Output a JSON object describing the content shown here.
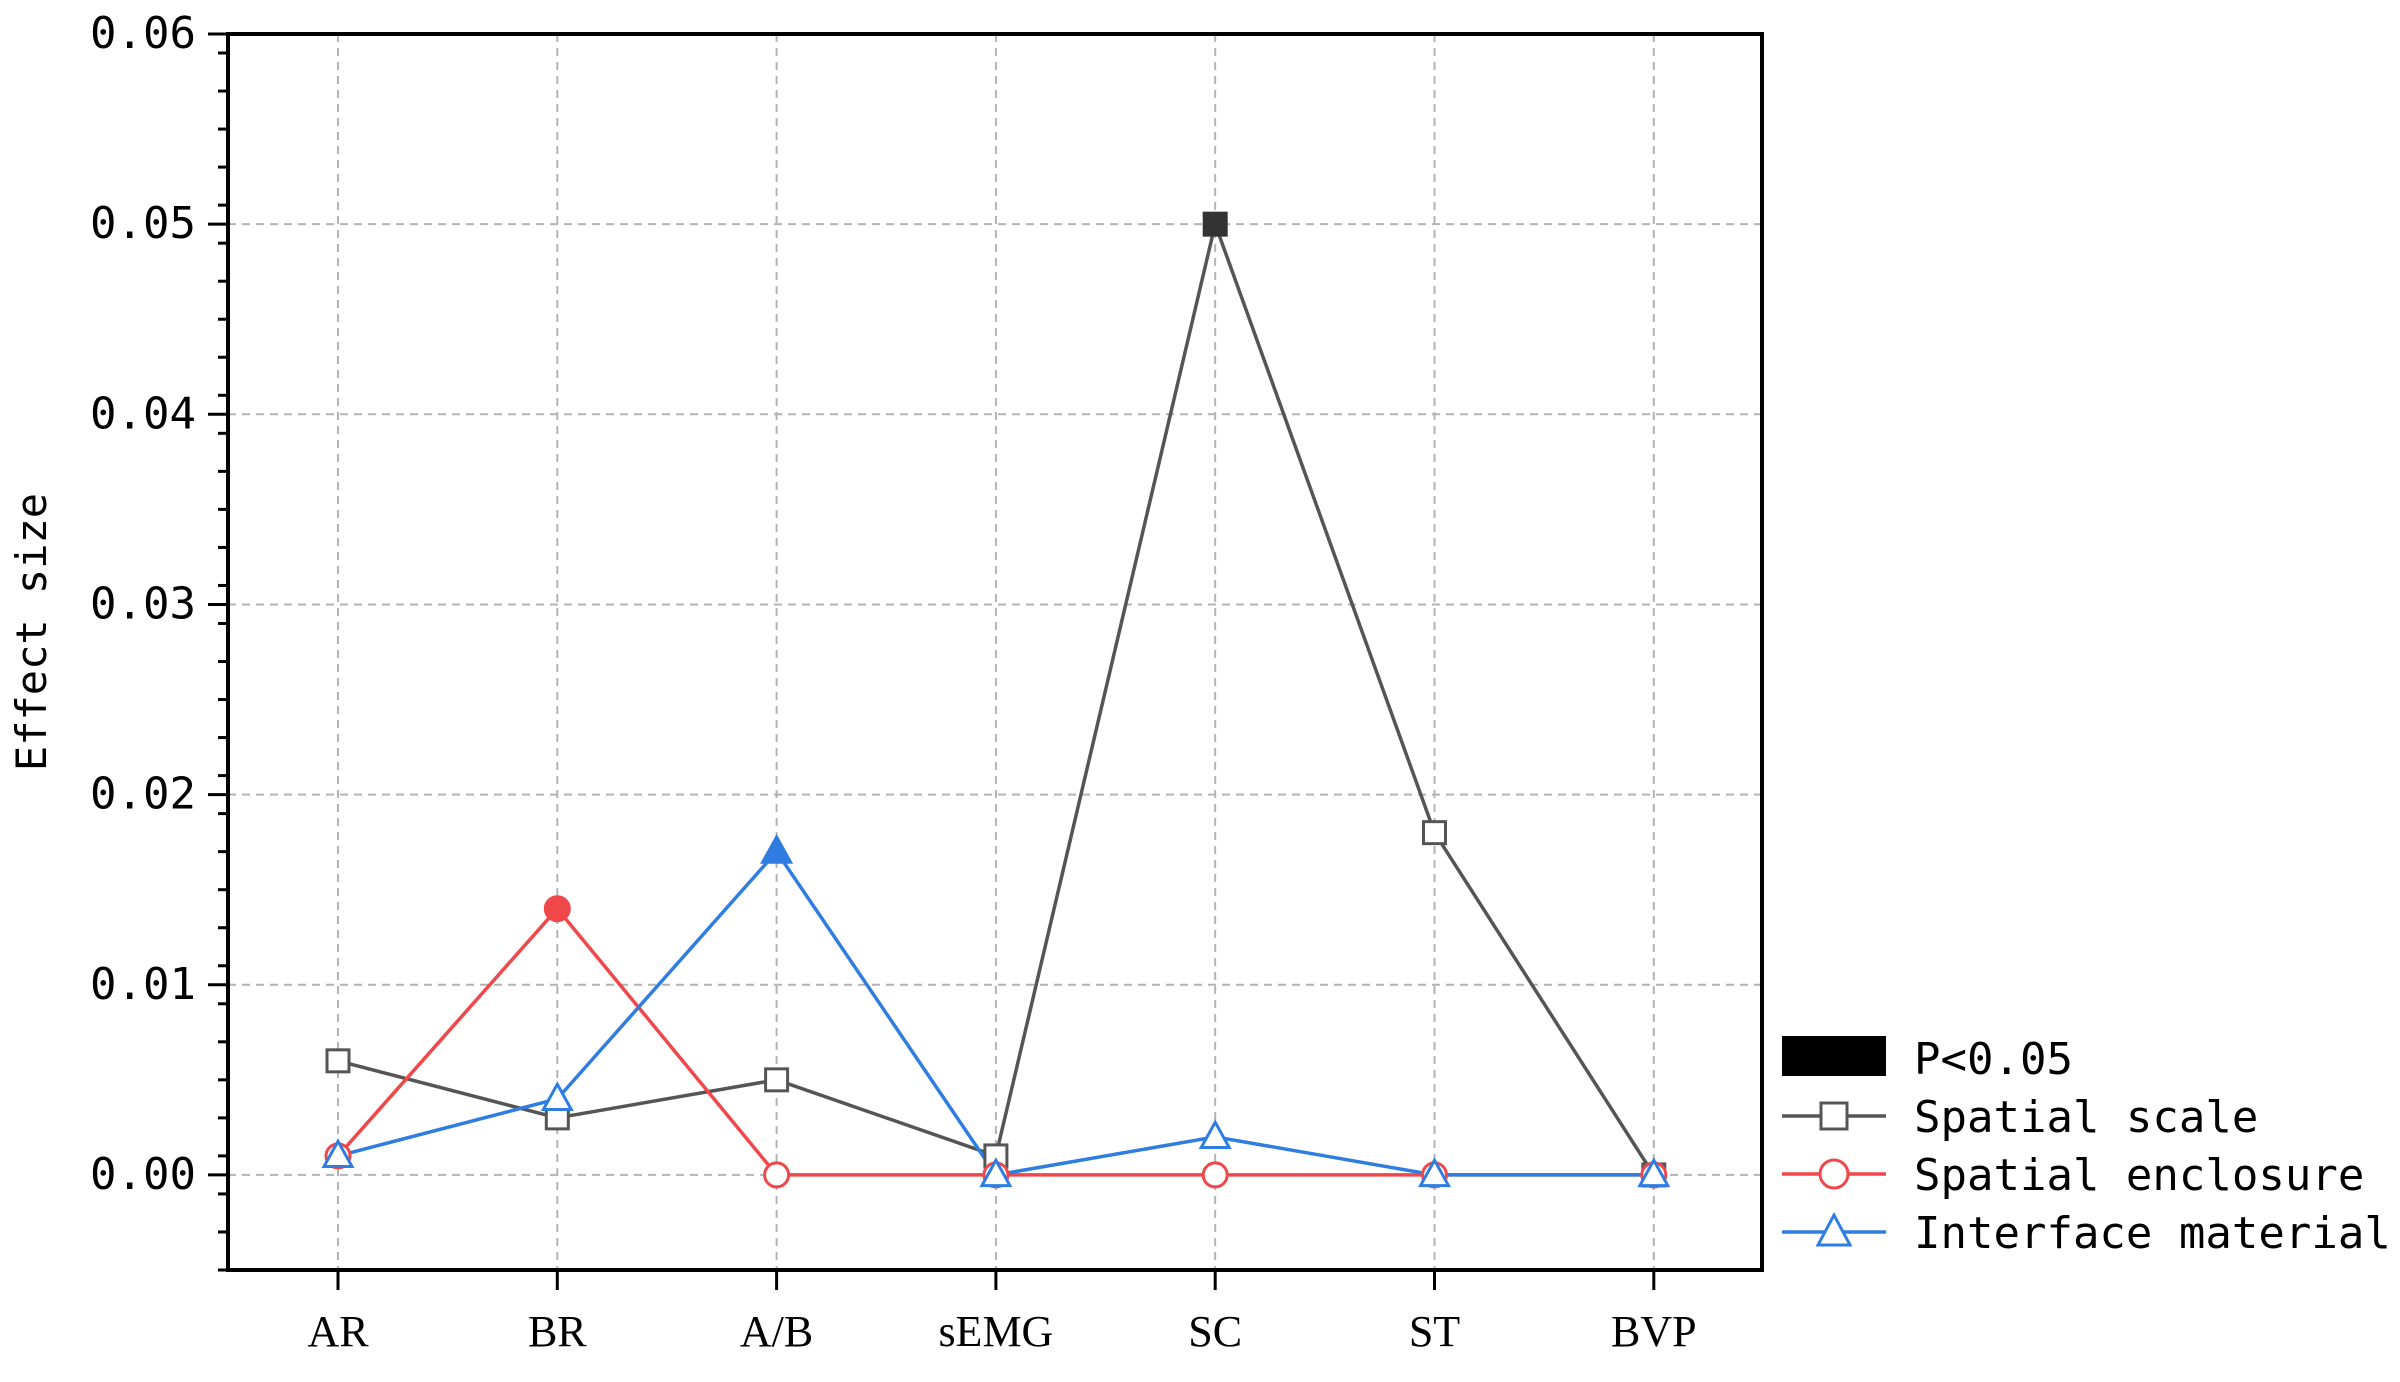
{
  "chart_data": {
    "type": "line",
    "ylabel": "Effect size",
    "xlabel": "",
    "categories": [
      "AR",
      "BR",
      "A/B",
      "sEMG",
      "SC",
      "ST",
      "BVP"
    ],
    "ylim": [
      -0.005,
      0.06
    ],
    "yticks": [
      0.0,
      0.01,
      0.02,
      0.03,
      0.04,
      0.05,
      0.06
    ],
    "ytick_labels": [
      "0.00",
      "0.01",
      "0.02",
      "0.03",
      "0.04",
      "0.05",
      "0.06"
    ],
    "grid": true,
    "legend_placement": "right",
    "significance_legend": "P<0.05",
    "series": [
      {
        "name": "Spatial scale",
        "color": "#555555",
        "marker": "square",
        "values": [
          0.006,
          0.003,
          0.005,
          0.001,
          0.05,
          0.018,
          0.0
        ],
        "significant": [
          false,
          false,
          false,
          false,
          true,
          false,
          false
        ]
      },
      {
        "name": "Spatial enclosure",
        "color": "#f0474a",
        "marker": "circle",
        "values": [
          0.001,
          0.014,
          0.0,
          0.0,
          0.0,
          0.0,
          0.0
        ],
        "significant": [
          false,
          true,
          false,
          false,
          false,
          false,
          false
        ]
      },
      {
        "name": "Interface material",
        "color": "#2f7de1",
        "marker": "triangle",
        "values": [
          0.001,
          0.004,
          0.017,
          0.0,
          0.002,
          0.0,
          0.0
        ],
        "significant": [
          false,
          false,
          true,
          false,
          false,
          false,
          false
        ]
      }
    ]
  }
}
